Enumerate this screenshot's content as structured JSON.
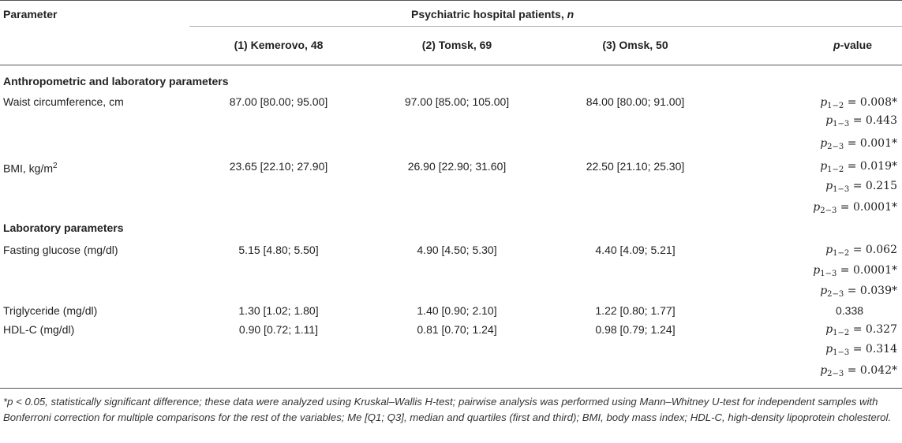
{
  "header": {
    "parameter": "Parameter",
    "group_title_prefix": "Psychiatric hospital patients,",
    "group_title_n": "n",
    "col1": "(1) Kemerovo, 48",
    "col2": "(2) Tomsk, 69",
    "col3": "(3) Omsk, 50",
    "pvalue_p": "p",
    "pvalue_rest": "-value"
  },
  "section1": "Anthropometric and laboratory parameters",
  "section2": "Laboratory parameters",
  "rows": {
    "waist": {
      "label": "Waist circumference, cm",
      "c1": "87.00 [80.00; 95.00]",
      "c2": "97.00 [85.00; 105.00]",
      "c3": "84.00 [80.00; 91.00]",
      "p12": "0.008*",
      "p13": "0.443",
      "p23": "0.001*"
    },
    "bmi": {
      "label": "BMI, kg/m",
      "label_sup": "2",
      "c1": "23.65 [22.10; 27.90]",
      "c2": "26.90 [22.90; 31.60]",
      "c3": "22.50 [21.10; 25.30]",
      "p12": "0.019*",
      "p13": "0.215",
      "p23": "0.0001*"
    },
    "glucose": {
      "label": "Fasting glucose (mg/dl)",
      "c1": "5.15 [4.80; 5.50]",
      "c2": "4.90 [4.50; 5.30]",
      "c3": "4.40 [4.09; 5.21]",
      "p12": "0.062",
      "p13": "0.0001*",
      "p23": "0.039*"
    },
    "tg": {
      "label": "Triglyceride (mg/dl)",
      "c1": "1.30 [1.02; 1.80]",
      "c2": "1.40 [0.90; 2.10]",
      "c3": "1.22 [0.80; 1.77]",
      "p": "0.338"
    },
    "hdl": {
      "label": "HDL-C (mg/dl)",
      "c1": "0.90 [0.72; 1.11]",
      "c2": "0.81 [0.70; 1.24]",
      "c3": "0.98 [0.79; 1.24]",
      "p12": "0.327",
      "p13": "0.314",
      "p23": "0.042*"
    }
  },
  "subscripts": {
    "s12": "1−2",
    "s13": "1−3",
    "s23": "2−3",
    "p": "p",
    "eq": " = "
  },
  "footnote": {
    "star_p": "*p",
    "text": " < 0.05, statistically significant difference; these data were analyzed using Kruskal–Wallis H-test; pairwise analysis was performed using Mann–Whitney U-test for independent samples with Bonferroni correction for multiple comparisons for the rest of the variables; Me [Q1; Q3], median and quartiles (first and third); BMI, body mass index; HDL-C, high-density lipoprotein cholesterol."
  }
}
